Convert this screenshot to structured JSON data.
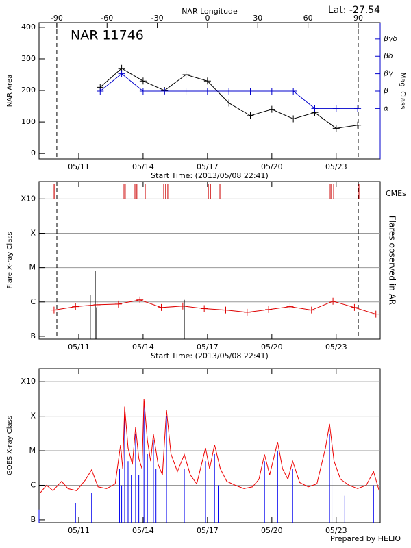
{
  "chart_data": [
    {
      "type": "line",
      "title": "NAR 11746",
      "corner_note": "Lat: -27.54",
      "ylabel": "NAR Area",
      "xlabel": "Start Time: (2013/05/08 22:41)",
      "x2label": "NAR Longitude",
      "y2label": "Mag. Class",
      "y2color": "#0000cc",
      "xlim": [
        9.15,
        25.05
      ],
      "xticks": [
        {
          "value": 11,
          "label": "05/11"
        },
        {
          "value": 14,
          "label": "05/14"
        },
        {
          "value": 17,
          "label": "05/17"
        },
        {
          "value": 20,
          "label": "05/20"
        },
        {
          "value": 23,
          "label": "05/23"
        }
      ],
      "ylim": [
        -17,
        415
      ],
      "yticks": [
        0,
        100,
        200,
        300,
        400
      ],
      "x2lim": [
        -100.6,
        103.1
      ],
      "x2ticks": [
        -90,
        -60,
        -30,
        0,
        30,
        60,
        90
      ],
      "y2lim": [
        0.1,
        7.94
      ],
      "y2ticks": [
        {
          "value": 3,
          "label": "α"
        },
        {
          "value": 4,
          "label": "β"
        },
        {
          "value": 5,
          "label": "βγ"
        },
        {
          "value": 6,
          "label": "βδ"
        },
        {
          "value": 7,
          "label": "βγδ"
        }
      ],
      "dashed_lines_x2": [
        -90,
        90
      ],
      "grid": false,
      "series": [
        {
          "color": "#000000",
          "style": "line",
          "marker": "plus",
          "x": [
            12,
            13,
            14,
            15,
            16,
            17,
            18,
            19,
            20,
            21,
            22,
            23,
            24
          ],
          "values": [
            210,
            270,
            230,
            200,
            250,
            230,
            160,
            120,
            140,
            110,
            130,
            80,
            90
          ]
        },
        {
          "color": "#0000cc",
          "style": "line",
          "marker": "plus",
          "axis": "y2",
          "x": [
            12,
            13,
            14,
            15,
            16,
            17,
            18,
            19,
            20,
            21,
            22,
            23,
            24
          ],
          "values": [
            4,
            5,
            4,
            4,
            4,
            4,
            4,
            4,
            4,
            4,
            3,
            3,
            3
          ]
        }
      ]
    },
    {
      "type": "line",
      "ylabel": "Flare X-ray Class",
      "y2label": "Flares observed in AR",
      "xlabel": "Start Time: (2013/05/08 22:41)",
      "cme_label": "CMEs",
      "cme_color": "#cc0000",
      "xlim": [
        9.15,
        25.05
      ],
      "xticks": [
        {
          "value": 11,
          "label": "05/11"
        },
        {
          "value": 14,
          "label": "05/14"
        },
        {
          "value": 17,
          "label": "05/17"
        },
        {
          "value": 20,
          "label": "05/20"
        },
        {
          "value": 23,
          "label": "05/23"
        }
      ],
      "log_y": true,
      "ylim": [
        8.3e-08,
        0.0032
      ],
      "yticks": [
        {
          "value": 1e-07,
          "label": "B"
        },
        {
          "value": 1e-06,
          "label": "C"
        },
        {
          "value": 1e-05,
          "label": "M"
        },
        {
          "value": 0.0001,
          "label": "X"
        },
        {
          "value": 0.001,
          "label": "X10"
        }
      ],
      "grid": true,
      "dashed_lines": [
        9.98,
        24.03
      ],
      "cme_x": [
        9.82,
        9.88,
        13.11,
        13.17,
        13.62,
        13.71,
        14.1,
        14.96,
        15.05,
        15.15,
        17.04,
        17.14,
        17.58,
        22.72,
        22.78,
        22.88,
        24.06
      ],
      "series": [
        {
          "color": "#000000",
          "style": "spike",
          "x": [
            11.54,
            11.77,
            11.83,
            15.92
          ],
          "values": [
            1.6e-06,
            8.1e-06,
            7e-07,
            1.15e-06
          ]
        },
        {
          "color": "#dd0000",
          "style": "line",
          "marker": "plus",
          "x": [
            9.85,
            10.85,
            11.85,
            12.85,
            13.85,
            14.85,
            15.85,
            16.85,
            17.85,
            18.85,
            19.85,
            20.85,
            21.85,
            22.85,
            23.85,
            24.85
          ],
          "values": [
            5.8e-07,
            7.3e-07,
            8.3e-07,
            8.7e-07,
            1.15e-06,
            6.9e-07,
            7.6e-07,
            6.4e-07,
            5.8e-07,
            5e-07,
            6e-07,
            7.3e-07,
            5.8e-07,
            1.05e-06,
            6.9e-07,
            4.4e-07
          ]
        }
      ]
    },
    {
      "type": "line",
      "ylabel": "GOES X-ray Class",
      "footer": "Prepared by HELIO",
      "xlim": [
        9.15,
        25.05
      ],
      "xticks": [
        {
          "value": 11,
          "label": "05/11"
        },
        {
          "value": 14,
          "label": "05/14"
        },
        {
          "value": 17,
          "label": "05/17"
        },
        {
          "value": 20,
          "label": "05/20"
        },
        {
          "value": 23,
          "label": "05/23"
        }
      ],
      "log_y": true,
      "ylim": [
        8.3e-08,
        0.0024
      ],
      "yticks": [
        {
          "value": 1e-07,
          "label": "B"
        },
        {
          "value": 1e-06,
          "label": "C"
        },
        {
          "value": 1e-05,
          "label": "M"
        },
        {
          "value": 0.0001,
          "label": "X"
        },
        {
          "value": 0.001,
          "label": "X10"
        }
      ],
      "grid": true,
      "series": [
        {
          "color": "#0000ee",
          "style": "spike",
          "x": [
            9.15,
            9.9,
            10.85,
            11.6,
            12.9,
            13.0,
            13.14,
            13.3,
            13.45,
            13.65,
            13.8,
            14.04,
            14.2,
            14.48,
            14.6,
            15.09,
            15.2,
            15.92,
            16.91,
            17.33,
            17.5,
            19.66,
            20.27,
            20.97,
            22.69,
            22.8,
            23.4,
            24.74
          ],
          "values": [
            2e-07,
            3e-07,
            3e-07,
            6e-07,
            3e-06,
            1e-06,
            0.00015,
            5e-06,
            2e-06,
            3e-05,
            2e-06,
            0.0002,
            8e-06,
            2e-05,
            3e-06,
            0.0001,
            2e-06,
            3e-06,
            5e-06,
            8e-06,
            1e-06,
            5e-06,
            1e-05,
            3e-06,
            3e-05,
            2e-06,
            5e-07,
            1e-06
          ]
        },
        {
          "color": "#ee0000",
          "style": "line",
          "x": [
            9.2,
            9.5,
            9.8,
            10.2,
            10.5,
            10.9,
            11.3,
            11.6,
            11.9,
            12.3,
            12.7,
            12.95,
            13.05,
            13.14,
            13.3,
            13.5,
            13.65,
            13.8,
            13.95,
            14.04,
            14.2,
            14.35,
            14.48,
            14.7,
            14.9,
            15.09,
            15.3,
            15.6,
            15.92,
            16.2,
            16.5,
            16.91,
            17.1,
            17.33,
            17.6,
            17.9,
            18.3,
            18.7,
            19.1,
            19.4,
            19.66,
            19.9,
            20.27,
            20.5,
            20.75,
            20.97,
            21.3,
            21.7,
            22.1,
            22.5,
            22.69,
            22.9,
            23.2,
            23.6,
            24.0,
            24.4,
            24.74,
            25.0
          ],
          "values": [
            6e-07,
            1e-06,
            7e-07,
            1.3e-06,
            8e-07,
            7e-07,
            1.4e-06,
            2.8e-06,
            9e-07,
            8e-07,
            1.1e-06,
            1.5e-05,
            3e-06,
            0.00019,
            1.2e-05,
            4e-06,
            4.8e-05,
            6e-06,
            3e-06,
            0.00031,
            2e-05,
            5e-06,
            3e-05,
            4e-06,
            2e-06,
            0.00015,
            8e-06,
            2.5e-06,
            7.8e-06,
            2e-06,
            1.1e-06,
            1.2e-05,
            3e-06,
            1.5e-05,
            3e-06,
            1.3e-06,
            1e-06,
            8e-07,
            9e-07,
            1.5e-06,
            7.8e-06,
            2e-06,
            1.8e-05,
            3e-06,
            1.5e-06,
            5e-06,
            1.2e-06,
            9e-07,
            1.1e-06,
            1.2e-05,
            6e-05,
            5e-06,
            1.5e-06,
            1e-06,
            8e-07,
            1e-06,
            2.5e-06,
            7e-07
          ]
        }
      ]
    }
  ]
}
